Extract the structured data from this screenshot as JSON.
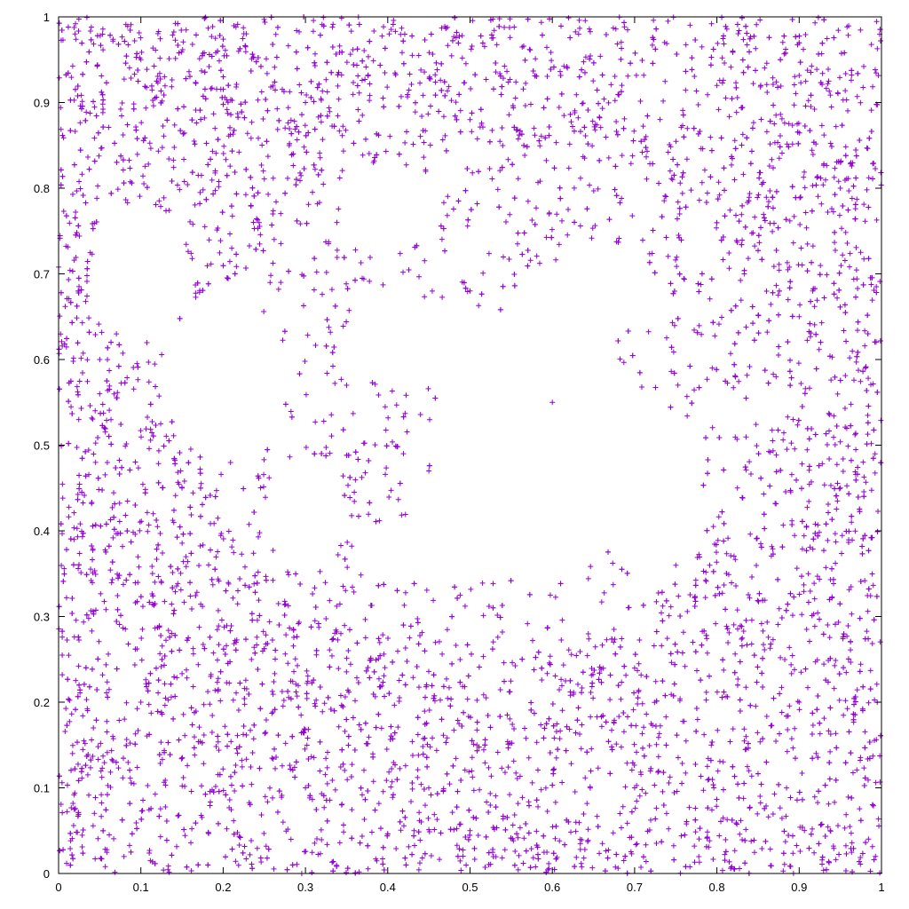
{
  "chart_data": {
    "type": "scatter",
    "title": "",
    "xlabel": "",
    "ylabel": "",
    "xlim": [
      0,
      1
    ],
    "ylim": [
      0,
      1
    ],
    "grid": false,
    "legend": "none",
    "marker": "plus",
    "color": "#9400d3",
    "x_ticks": [
      "0",
      "0.1",
      "0.2",
      "0.3",
      "0.4",
      "0.5",
      "0.6",
      "0.7",
      "0.8",
      "0.9",
      "1"
    ],
    "y_ticks": [
      "0",
      "0.1",
      "0.2",
      "0.3",
      "0.4",
      "0.5",
      "0.6",
      "0.7",
      "0.8",
      "0.9",
      "1"
    ],
    "series": [
      {
        "description": "Points uniformly filling the unit square except for a void region roughly centered near (0.55, 0.5) with irregular arms; represented here by a deterministic sampled set.",
        "points_count_shown": 6000,
        "sample_points": [
          [
            0.02,
            0.98
          ],
          [
            0.1,
            0.95
          ],
          [
            0.3,
            0.9
          ],
          [
            0.5,
            0.88
          ],
          [
            0.8,
            0.92
          ],
          [
            0.95,
            0.8
          ],
          [
            0.05,
            0.6
          ],
          [
            0.15,
            0.45
          ],
          [
            0.1,
            0.2
          ],
          [
            0.3,
            0.1
          ],
          [
            0.5,
            0.05
          ],
          [
            0.7,
            0.1
          ],
          [
            0.9,
            0.2
          ],
          [
            0.95,
            0.45
          ],
          [
            0.9,
            0.65
          ],
          [
            0.35,
            0.57
          ],
          [
            0.6,
            0.55
          ],
          [
            0.45,
            0.47
          ],
          [
            0.5,
            0.68
          ],
          [
            0.27,
            0.69
          ]
        ]
      }
    ]
  }
}
